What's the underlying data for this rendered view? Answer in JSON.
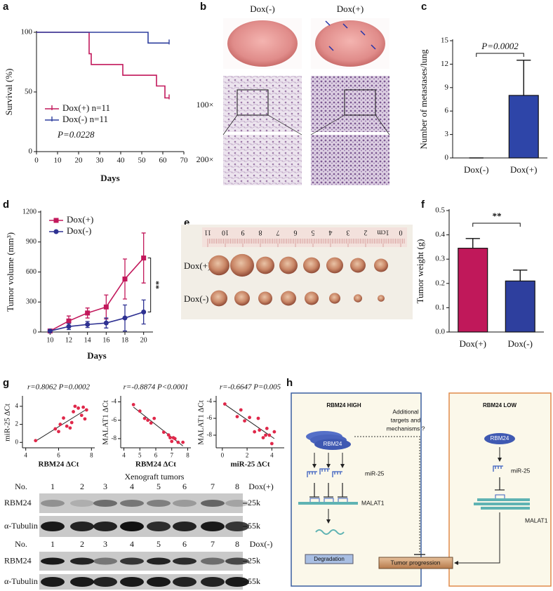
{
  "panel_labels": [
    "a",
    "b",
    "c",
    "d",
    "e",
    "f",
    "g",
    "h"
  ],
  "chart_data": [
    {
      "type": "line",
      "ylabel": "Survival (%)",
      "xlabel": "Days",
      "xlim": [
        0,
        70
      ],
      "xticks": [
        0,
        10,
        20,
        30,
        40,
        50,
        60,
        70
      ],
      "ylim": [
        0,
        100
      ],
      "yticks": [
        0,
        50,
        100
      ],
      "legend": "lower left",
      "annotation": "P=0.0228",
      "series": [
        {
          "name": "Dox(+) n=11",
          "color": "#c2185b",
          "x": [
            0,
            25,
            25,
            26,
            26,
            41,
            41,
            57,
            57,
            61,
            61,
            63
          ],
          "values": [
            100,
            100,
            82,
            82,
            73,
            73,
            64,
            64,
            55,
            55,
            45,
            45
          ]
        },
        {
          "name": "Dox(-) n=11",
          "color": "#2e3f9e",
          "x": [
            0,
            53,
            53,
            63
          ],
          "values": [
            100,
            100,
            91,
            91
          ]
        }
      ]
    },
    {
      "type": "bar",
      "ylabel": "Number of metastases/lung",
      "categories": [
        "Dox(-)",
        "Dox(+)"
      ],
      "values": [
        0,
        8
      ],
      "errors": [
        0,
        4.5
      ],
      "colors": [
        "#2e45a8",
        "#2e45a8"
      ],
      "ylim": [
        0,
        15
      ],
      "yticks": [
        0,
        3,
        6,
        9,
        12,
        15
      ],
      "annotation": "P=0.0002"
    },
    {
      "type": "line",
      "ylabel": "Tumor volume (mm³)",
      "xlabel": "Days",
      "x": [
        10,
        12,
        14,
        16,
        18,
        20
      ],
      "xlim": [
        9,
        21
      ],
      "xticks": [
        10,
        12,
        14,
        16,
        18,
        20
      ],
      "ylim": [
        0,
        1200
      ],
      "yticks": [
        0,
        300,
        600,
        900,
        1200
      ],
      "legend": "upper left",
      "annotation": "**",
      "series": [
        {
          "name": "Dox(+)",
          "color": "#c2185b",
          "marker": "square",
          "values": [
            10,
            110,
            190,
            250,
            530,
            740
          ],
          "errors": [
            10,
            50,
            50,
            120,
            200,
            250
          ]
        },
        {
          "name": "Dox(-)",
          "color": "#2e3192",
          "marker": "circle",
          "values": [
            10,
            55,
            75,
            90,
            140,
            200
          ],
          "errors": [
            10,
            30,
            30,
            50,
            130,
            120
          ]
        }
      ]
    },
    {
      "type": "bar",
      "ylabel": "Tumor weight (g)",
      "categories": [
        "Dox(+)",
        "Dox(-)"
      ],
      "values": [
        0.345,
        0.21
      ],
      "errors": [
        0.04,
        0.045
      ],
      "colors": [
        "#c0185a",
        "#2e3f9e"
      ],
      "ylim": [
        0,
        0.5
      ],
      "yticks": [
        {
          "value": 0,
          "label": "0.0"
        },
        0.1,
        0.2,
        0.3,
        0.4,
        0.5
      ],
      "annotation": "**"
    },
    {
      "type": "scatter",
      "title": "r=0.8062 P=0.0002",
      "ylabel": "miR-25 ΔCt",
      "xlabel": "RBM24 ΔCt",
      "color": "#e0284a",
      "xlim": [
        3.8,
        8.2
      ],
      "xticks": [
        4,
        6,
        8
      ],
      "ylim": [
        -0.6,
        5
      ],
      "yticks": [
        0,
        2,
        4
      ],
      "x": [
        4.6,
        5.8,
        6.0,
        6.1,
        6.3,
        6.5,
        6.7,
        6.8,
        6.9,
        7.0,
        7.2,
        7.4,
        7.5,
        7.6,
        7.7
      ],
      "values": [
        0.2,
        1.5,
        1.2,
        2.0,
        2.7,
        1.8,
        1.6,
        2.2,
        3.4,
        4.0,
        3.8,
        3.0,
        3.9,
        2.6,
        3.6
      ]
    },
    {
      "type": "scatter",
      "title": "r=-0.8874 P<0.0001",
      "ylabel": "MALAT1 ΔCt",
      "xlabel": "RBM24 ΔCt",
      "color": "#e0284a",
      "xlim": [
        3.8,
        8.2
      ],
      "xticks": [
        4,
        5,
        6,
        7,
        8
      ],
      "ylim": [
        -9,
        -3.5
      ],
      "yticks": [
        -4,
        -6,
        -8
      ],
      "x": [
        4.6,
        5.0,
        5.3,
        5.5,
        5.7,
        5.9,
        6.5,
        6.8,
        6.9,
        7.0,
        7.1,
        7.2,
        7.4,
        7.7
      ],
      "values": [
        -4.3,
        -5.0,
        -5.8,
        -6.0,
        -6.3,
        -5.8,
        -7.3,
        -7.6,
        -7.9,
        -8.3,
        -7.9,
        -8.0,
        -8.4,
        -8.4
      ]
    },
    {
      "type": "scatter",
      "title": "r=-0.6647 P=0.005",
      "ylabel": "MALAT1 ΔCt",
      "xlabel": "miR-25 ΔCt",
      "color": "#e0284a",
      "xlim": [
        -0.5,
        5
      ],
      "xticks": [
        0,
        2,
        4
      ],
      "ylim": [
        -9.5,
        -3.5
      ],
      "yticks": [
        -4,
        -6,
        -8
      ],
      "x": [
        0.2,
        1.2,
        1.5,
        1.8,
        2.2,
        2.6,
        2.9,
        3.0,
        3.3,
        3.5,
        3.6,
        3.8,
        4.0,
        4.2
      ],
      "values": [
        -4.3,
        -5.8,
        -5.0,
        -6.3,
        -5.9,
        -7.6,
        -6.0,
        -7.4,
        -8.3,
        -8.0,
        -7.2,
        -8.0,
        -9.0,
        -7.6
      ]
    }
  ],
  "photos": {
    "lung": {
      "columns": [
        "Dox(-)",
        "Dox(+)"
      ],
      "rows": [
        "100×",
        "200×"
      ]
    },
    "tumors": {
      "rows": [
        "Dox(+)",
        "Dox(-)"
      ],
      "ruler": [
        "11",
        "10",
        "9",
        "8",
        "7",
        "6",
        "5",
        "4",
        "3",
        "2",
        "1cm",
        "0"
      ]
    }
  },
  "blots": {
    "title": "Xenograft tumors",
    "groups": [
      {
        "lane_header": "No.",
        "lanes": [
          "1",
          "2",
          "3",
          "4",
          "5",
          "6",
          "7",
          "8"
        ],
        "condition": "Dox(+)",
        "rows": [
          {
            "protein": "RBM24",
            "size": "25k"
          },
          {
            "protein": "α-Tubulin",
            "size": "55k"
          }
        ]
      },
      {
        "lane_header": "No.",
        "lanes": [
          "1",
          "2",
          "3",
          "4",
          "5",
          "6",
          "7",
          "8"
        ],
        "condition": "Dox(-)",
        "rows": [
          {
            "protein": "RBM24",
            "size": "25k"
          },
          {
            "protein": "α-Tubulin",
            "size": "55k"
          }
        ]
      }
    ]
  },
  "diagram": {
    "left": {
      "title": "RBM24 HIGH",
      "protein": "RBM24",
      "mirna": "miR-25",
      "target": "MALAT1",
      "outcome": "Degradation"
    },
    "right": {
      "title": "RBM24 LOW",
      "protein": "RBM24",
      "mirna": "miR-25",
      "target": "MALAT1"
    },
    "note": [
      "Additional",
      "targets and",
      "mechanisms ?"
    ],
    "output": "Tumor progression"
  }
}
